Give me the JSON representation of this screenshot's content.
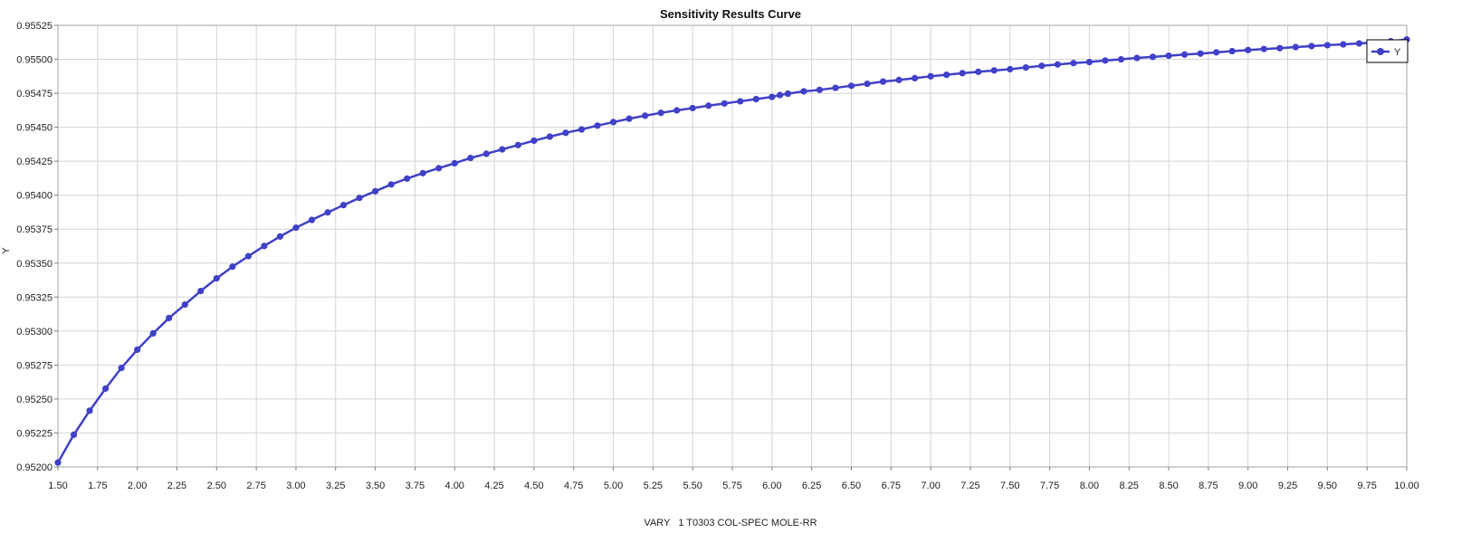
{
  "chart_data": {
    "type": "line",
    "title": "Sensitivity Results Curve",
    "xlabel": "VARY   1 T0303 COL-SPEC MOLE-RR",
    "ylabel": "Y",
    "xlim": [
      1.5,
      10.0
    ],
    "ylim": [
      0.952,
      0.95525
    ],
    "x_ticks": [
      "1.50",
      "1.75",
      "2.00",
      "2.25",
      "2.50",
      "2.75",
      "3.00",
      "3.25",
      "3.50",
      "3.75",
      "4.00",
      "4.25",
      "4.50",
      "4.75",
      "5.00",
      "5.25",
      "5.50",
      "5.75",
      "6.00",
      "6.25",
      "6.50",
      "6.75",
      "7.00",
      "7.25",
      "7.50",
      "7.75",
      "8.00",
      "8.25",
      "8.50",
      "8.75",
      "9.00",
      "9.25",
      "9.50",
      "9.75",
      "10.00"
    ],
    "y_ticks": [
      "0.95200",
      "0.95225",
      "0.95250",
      "0.95275",
      "0.95300",
      "0.95325",
      "0.95350",
      "0.95375",
      "0.95400",
      "0.95425",
      "0.95450",
      "0.95475",
      "0.95500",
      "0.95525"
    ],
    "grid": true,
    "legend_position": "top-right",
    "series_color": "#4040c8",
    "series": [
      {
        "name": "Y",
        "x": [
          1.5,
          1.6,
          1.7,
          1.8,
          1.9,
          2.0,
          2.1,
          2.2,
          2.3,
          2.4,
          2.5,
          2.6,
          2.7,
          2.8,
          2.9,
          3.0,
          3.1,
          3.2,
          3.3,
          3.4,
          3.5,
          3.6,
          3.7,
          3.8,
          3.9,
          4.0,
          4.1,
          4.2,
          4.3,
          4.4,
          4.5,
          4.6,
          4.7,
          4.8,
          4.9,
          5.0,
          5.1,
          5.2,
          5.3,
          5.4,
          5.5,
          5.6,
          5.7,
          5.8,
          5.9,
          6.0,
          6.05,
          6.1,
          6.2,
          6.3,
          6.4,
          6.5,
          6.6,
          6.7,
          6.8,
          6.9,
          7.0,
          7.1,
          7.2,
          7.3,
          7.4,
          7.5,
          7.6,
          7.7,
          7.8,
          7.9,
          8.0,
          8.1,
          8.2,
          8.3,
          8.4,
          8.5,
          8.6,
          8.7,
          8.8,
          8.9,
          9.0,
          9.1,
          9.2,
          9.3,
          9.4,
          9.5,
          9.6,
          9.7,
          9.8,
          9.9,
          10.0
        ],
        "values": [
          0.952032,
          0.952237,
          0.952414,
          0.952577,
          0.952729,
          0.952863,
          0.952983,
          0.953096,
          0.953195,
          0.953295,
          0.953388,
          0.953474,
          0.953551,
          0.953626,
          0.953696,
          0.953761,
          0.953818,
          0.953873,
          0.953927,
          0.95398,
          0.954029,
          0.954079,
          0.954122,
          0.954162,
          0.954199,
          0.954235,
          0.954274,
          0.954305,
          0.954337,
          0.954369,
          0.954401,
          0.954431,
          0.954459,
          0.954484,
          0.954512,
          0.954538,
          0.954563,
          0.954585,
          0.954606,
          0.954624,
          0.954641,
          0.954659,
          0.954675,
          0.954691,
          0.954707,
          0.954723,
          0.954737,
          0.954747,
          0.954764,
          0.954775,
          0.95479,
          0.954805,
          0.95482,
          0.954836,
          0.954848,
          0.954861,
          0.954875,
          0.954886,
          0.954898,
          0.954908,
          0.954918,
          0.954927,
          0.95494,
          0.954952,
          0.954962,
          0.954972,
          0.95498,
          0.954991,
          0.955,
          0.95501,
          0.955018,
          0.955026,
          0.955035,
          0.955042,
          0.955051,
          0.95506,
          0.955068,
          0.955076,
          0.955082,
          0.95509,
          0.955097,
          0.955104,
          0.95511,
          0.955117,
          0.955124,
          0.955133,
          0.955146
        ]
      }
    ]
  }
}
